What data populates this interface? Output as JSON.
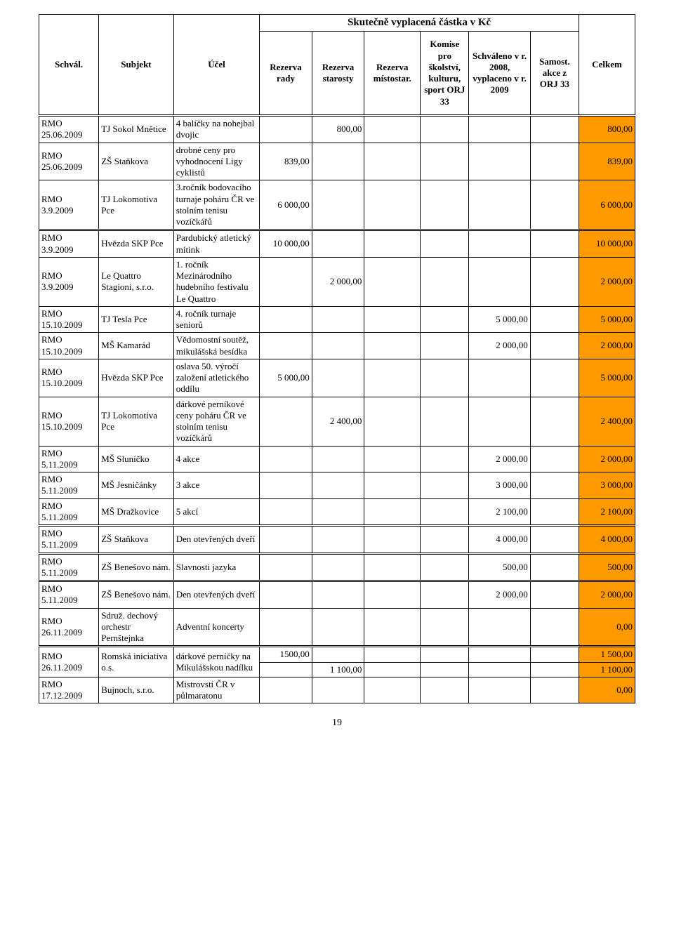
{
  "title": "Skutečně vyplacená částka v Kč",
  "headers": {
    "schval": "Schvál.",
    "subjekt": "Subjekt",
    "ucel": "Účel",
    "rezerva_rady": "Rezerva rady",
    "rezerva_starosty": "Rezerva starosty",
    "rezerva_mistostar": "Rezerva místostar.",
    "komise": "Komise pro školství, kulturu, sport ORJ 33",
    "schvaleno": "Schváleno v r. 2008, vyplaceno v r. 2009",
    "samost": "Samost. akce z ORJ 33",
    "celkem": "Celkem"
  },
  "colors": {
    "highlight": "#ff9900",
    "border": "#000000",
    "background": "#ffffff"
  },
  "page_number": "19",
  "rows": [
    {
      "schval": "RMO 25.06.2009",
      "subjekt": "TJ Sokol Mnětice",
      "ucel": "4 balíčky na nohejbal dvojic",
      "r_rady": "",
      "r_star": "800,00",
      "r_mist": "",
      "komise": "",
      "schvaleno": "",
      "samost": "",
      "celkem": "800,00",
      "thick": true
    },
    {
      "schval": "RMO 25.06.2009",
      "subjekt": "ZŠ Staňkova",
      "ucel": "drobné ceny pro vyhodnocení Ligy cyklistů",
      "r_rady": "839,00",
      "r_star": "",
      "r_mist": "",
      "komise": "",
      "schvaleno": "",
      "samost": "",
      "celkem": "839,00"
    },
    {
      "schval": "RMO 3.9.2009",
      "subjekt": "TJ Lokomotiva Pce",
      "ucel": "3.ročník bodovacího turnaje poháru ČR ve stolním tenisu vozíčkářů",
      "r_rady": "6 000,00",
      "r_star": "",
      "r_mist": "",
      "komise": "",
      "schvaleno": "",
      "samost": "",
      "celkem": "6 000,00"
    },
    {
      "schval": "RMO 3.9.2009",
      "subjekt": "Hvězda SKP Pce",
      "ucel": "Pardubický atletický mítink",
      "r_rady": "10 000,00",
      "r_star": "",
      "r_mist": "",
      "komise": "",
      "schvaleno": "",
      "samost": "",
      "celkem": "10 000,00",
      "thick": true
    },
    {
      "schval": "RMO 3.9.2009",
      "subjekt": "Le Quattro Stagioni, s.r.o.",
      "ucel": "1. ročník Mezinárodního hudebního festivalu Le Quattro",
      "r_rady": "",
      "r_star": "2 000,00",
      "r_mist": "",
      "komise": "",
      "schvaleno": "",
      "samost": "",
      "celkem": "2 000,00"
    },
    {
      "schval": "RMO 15.10.2009",
      "subjekt": "TJ Tesla Pce",
      "ucel": "4. ročník turnaje seniorů",
      "r_rady": "",
      "r_star": "",
      "r_mist": "",
      "komise": "",
      "schvaleno": "5 000,00",
      "samost": "",
      "celkem": "5 000,00"
    },
    {
      "schval": "RMO 15.10.2009",
      "subjekt": "MŠ Kamarád",
      "ucel": "Vědomostní soutěž, mikulášská besídka",
      "r_rady": "",
      "r_star": "",
      "r_mist": "",
      "komise": "",
      "schvaleno": "2 000,00",
      "samost": "",
      "celkem": "2 000,00"
    },
    {
      "schval": "RMO 15.10.2009",
      "subjekt": "Hvězda SKP Pce",
      "ucel": "oslava 50. výročí založení atletického oddílu",
      "r_rady": "5 000,00",
      "r_star": "",
      "r_mist": "",
      "komise": "",
      "schvaleno": "",
      "samost": "",
      "celkem": "5 000,00"
    },
    {
      "schval": "RMO 15.10.2009",
      "subjekt": "TJ Lokomotiva Pce",
      "ucel": "dárkové perníkové ceny poháru ČR ve stolním tenisu vozíčkárů",
      "r_rady": "",
      "r_star": "2 400,00",
      "r_mist": "",
      "komise": "",
      "schvaleno": "",
      "samost": "",
      "celkem": "2 400,00"
    },
    {
      "schval": "RMO 5.11.2009",
      "subjekt": "MŠ Sluníčko",
      "ucel": "4 akce",
      "r_rady": "",
      "r_star": "",
      "r_mist": "",
      "komise": "",
      "schvaleno": "2 000,00",
      "samost": "",
      "celkem": "2 000,00"
    },
    {
      "schval": "RMO 5.11.2009",
      "subjekt": "MŠ Jesničánky",
      "ucel": "3 akce",
      "r_rady": "",
      "r_star": "",
      "r_mist": "",
      "komise": "",
      "schvaleno": "3 000,00",
      "samost": "",
      "celkem": "3 000,00"
    },
    {
      "schval": "RMO 5.11.2009",
      "subjekt": "MŠ Dražkovice",
      "ucel": "5 akcí",
      "r_rady": "",
      "r_star": "",
      "r_mist": "",
      "komise": "",
      "schvaleno": "2 100,00",
      "samost": "",
      "celkem": "2 100,00"
    },
    {
      "schval": "RMO 5.11.2009",
      "subjekt": "ZŠ Staňkova",
      "ucel": "Den otevřených dveří",
      "r_rady": "",
      "r_star": "",
      "r_mist": "",
      "komise": "",
      "schvaleno": "4 000,00",
      "samost": "",
      "celkem": "4 000,00",
      "thick": true
    },
    {
      "schval": "RMO 5.11.2009",
      "subjekt": "ZŠ Benešovo nám.",
      "ucel": "Slavnosti jazyka",
      "r_rady": "",
      "r_star": "",
      "r_mist": "",
      "komise": "",
      "schvaleno": "500,00",
      "samost": "",
      "celkem": "500,00",
      "thick": true
    },
    {
      "schval": "RMO 5.11.2009",
      "subjekt": "ZŠ Benešovo nám.",
      "ucel": "Den otevřených dveří",
      "r_rady": "",
      "r_star": "",
      "r_mist": "",
      "komise": "",
      "schvaleno": "2 000,00",
      "samost": "",
      "celkem": "2 000,00",
      "thick": true
    },
    {
      "schval": "RMO 26.11.2009",
      "subjekt": "Sdruž. dechový orchestr Pernštejnka",
      "ucel": "Adventní koncerty",
      "r_rady": "",
      "r_star": "",
      "r_mist": "",
      "komise": "",
      "schvaleno": "",
      "samost": "",
      "celkem": "0,00"
    }
  ],
  "romska_row": {
    "schval": "RMO 26.11.2009",
    "subjekt": "Romská iniciativa o.s.",
    "ucel": "dárkové perníčky na Mikulášskou nadílku",
    "r_rady": "1500,00",
    "celkem1": "1 500,00",
    "r_star": "1 100,00",
    "celkem2": "1 100,00"
  },
  "last_row": {
    "schval": "RMO 17.12.2009",
    "subjekt": "Bujnoch, s.r.o.",
    "ucel": "Mistrovstí ČR v půlmaratonu",
    "celkem": "0,00"
  }
}
